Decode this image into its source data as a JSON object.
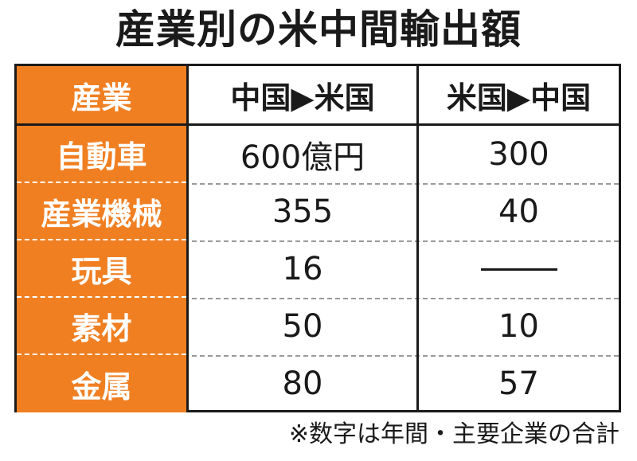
{
  "title": "産業別の米中間輸出額",
  "header": {
    "col0": "産業",
    "col1": "中国▶米国",
    "col2": "米国▶中国"
  },
  "rows": [
    {
      "industry": "自動車",
      "cn_to_us": "600億円",
      "us_to_cn": "300"
    },
    {
      "industry": "産業機械",
      "cn_to_us": "355",
      "us_to_cn": "40"
    },
    {
      "industry": "玩具",
      "cn_to_us": "16",
      "us_to_cn": "——"
    },
    {
      "industry": "素材",
      "cn_to_us": "50",
      "us_to_cn": "10"
    },
    {
      "industry": "金属",
      "cn_to_us": "80",
      "us_to_cn": "57"
    }
  ],
  "footnote": "※数字は年間・主要企業の合計",
  "colors": {
    "accent": "#f07f22",
    "text": "#1a1a1a"
  },
  "chart_data": {
    "type": "table",
    "title": "産業別の米中間輸出額",
    "columns": [
      "産業",
      "中国▶米国",
      "米国▶中国"
    ],
    "rows": [
      [
        "自動車",
        600,
        300
      ],
      [
        "産業機械",
        355,
        40
      ],
      [
        "玩具",
        16,
        null
      ],
      [
        "素材",
        50,
        10
      ],
      [
        "金属",
        80,
        57
      ]
    ],
    "unit": "億円",
    "note": "※数字は年間・主要企業の合計"
  }
}
